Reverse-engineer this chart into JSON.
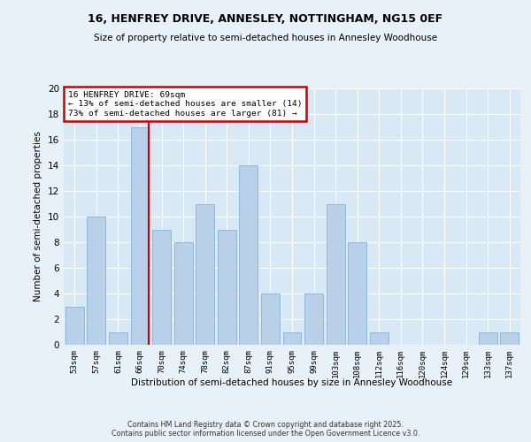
{
  "title": "16, HENFREY DRIVE, ANNESLEY, NOTTINGHAM, NG15 0EF",
  "subtitle": "Size of property relative to semi-detached houses in Annesley Woodhouse",
  "xlabel": "Distribution of semi-detached houses by size in Annesley Woodhouse",
  "ylabel": "Number of semi-detached properties",
  "categories": [
    "53sqm",
    "57sqm",
    "61sqm",
    "66sqm",
    "70sqm",
    "74sqm",
    "78sqm",
    "82sqm",
    "87sqm",
    "91sqm",
    "95sqm",
    "99sqm",
    "103sqm",
    "108sqm",
    "112sqm",
    "116sqm",
    "120sqm",
    "124sqm",
    "129sqm",
    "133sqm",
    "137sqm"
  ],
  "values": [
    3,
    10,
    1,
    17,
    9,
    8,
    11,
    9,
    14,
    4,
    1,
    4,
    11,
    8,
    1,
    0,
    0,
    0,
    0,
    1,
    1
  ],
  "bar_color": "#b8d0e8",
  "bar_edge_color": "#90b8d8",
  "highlight_line_index": 3,
  "highlight_color": "#cc0000",
  "annotation_title": "16 HENFREY DRIVE: 69sqm",
  "annotation_line1": "← 13% of semi-detached houses are smaller (14)",
  "annotation_line2": "73% of semi-detached houses are larger (81) →",
  "annotation_box_color": "#cc0000",
  "ylim": [
    0,
    20
  ],
  "yticks": [
    0,
    2,
    4,
    6,
    8,
    10,
    12,
    14,
    16,
    18,
    20
  ],
  "bg_color": "#e8f0f8",
  "plot_bg_color": "#d8e8f4",
  "footer_line1": "Contains HM Land Registry data © Crown copyright and database right 2025.",
  "footer_line2": "Contains public sector information licensed under the Open Government Licence v3.0."
}
